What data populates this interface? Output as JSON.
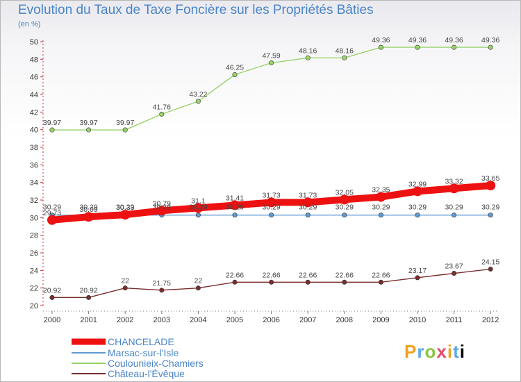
{
  "header": {
    "title": "Evolution du Taux de Taxe Foncière sur les Propriétés Bâties",
    "unit": "(en %)"
  },
  "logo": {
    "text": "Proxiti"
  },
  "chart_data": {
    "type": "line",
    "title": "Evolution du Taux de Taxe Foncière sur les Propriétés Bâties",
    "ylabel": "(en %)",
    "xlabel": "",
    "x": [
      "2000",
      "2001",
      "2002",
      "2003",
      "2004",
      "2005",
      "2006",
      "2007",
      "2008",
      "2009",
      "2010",
      "2011",
      "2012"
    ],
    "ylim": [
      20,
      50
    ],
    "yticks": [
      20,
      22,
      24,
      26,
      28,
      30,
      32,
      34,
      36,
      38,
      40,
      42,
      44,
      46,
      48,
      50
    ],
    "grid": false,
    "legend": "bottom-left",
    "series": [
      {
        "name": "CHANCELADE",
        "color": "#ee1111",
        "style": "thick",
        "values": [
          29.73,
          30.09,
          30.33,
          30.79,
          31.1,
          31.41,
          31.73,
          31.73,
          32.05,
          32.35,
          32.99,
          33.32,
          33.65
        ],
        "labels": [
          "29.73",
          "30.09",
          "30.33",
          "30.79",
          "31.1",
          "31.41",
          "31.73",
          "31.73",
          "32.05",
          "32.35",
          "32.99",
          "33.32",
          "33.65"
        ]
      },
      {
        "name": "Marsac-sur-l'Isle",
        "color": "#5f9ad1",
        "style": "normal",
        "values": [
          30.29,
          30.29,
          30.29,
          30.29,
          30.29,
          30.29,
          30.29,
          30.29,
          30.29,
          30.29,
          30.29,
          30.29,
          30.29
        ],
        "labels": [
          "30.29",
          "30.29",
          "30.29",
          "30.29",
          "30.29",
          "30.29",
          "30.29",
          "30.29",
          "30.29",
          "30.29",
          "30.29",
          "30.29",
          "30.29"
        ]
      },
      {
        "name": "Coulounieix-Chamiers",
        "color": "#99d36b",
        "style": "normal",
        "values": [
          39.97,
          39.97,
          39.97,
          41.76,
          43.22,
          46.25,
          47.59,
          48.16,
          48.16,
          49.36,
          49.36,
          49.36,
          49.36
        ],
        "labels": [
          "39.97",
          "39.97",
          "39.97",
          "41.76",
          "43.22",
          "46.25",
          "47.59",
          "48.16",
          "48.16",
          "49.36",
          "49.36",
          "49.36",
          "49.36"
        ]
      },
      {
        "name": "Château-l'Évêque",
        "color": "#7a2e2e",
        "style": "normal",
        "values": [
          20.92,
          20.92,
          22,
          21.75,
          22,
          22.66,
          22.66,
          22.66,
          22.66,
          22.66,
          23.17,
          23.67,
          24.15
        ],
        "labels": [
          "20.92",
          "20.92",
          "22",
          "21.75",
          "22",
          "22.66",
          "22.66",
          "22.66",
          "22.66",
          "22.66",
          "23.17",
          "23.67",
          "24.15"
        ]
      }
    ]
  }
}
